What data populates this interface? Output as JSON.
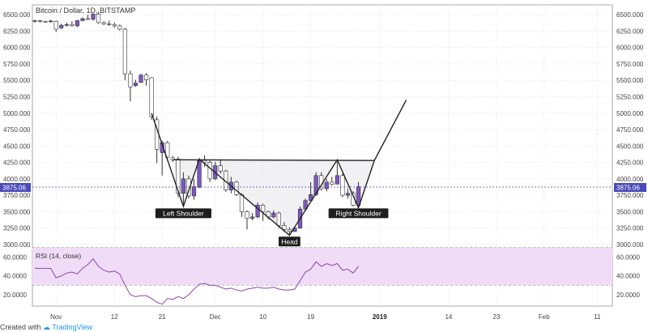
{
  "title": "Bitcoin / Dollar, 1D, BITSTAMP",
  "price_badge": "3875.06",
  "footer": {
    "prefix": "Created with",
    "brand": "TradingView"
  },
  "colors": {
    "up": "#7e57c2",
    "down": "#ffffff",
    "candle_border": "#333333",
    "pattern": "#222222",
    "pattern_fill": "#e8e8ec",
    "rsi_line": "#8e44ad",
    "rsi_band": "#f0dcf7",
    "badge": "#4a4ab8",
    "grid": "#d6d6d6"
  },
  "chart_data": {
    "type": "candlestick",
    "title": "Bitcoin / Dollar, 1D, BITSTAMP",
    "ylim": [
      2950,
      6650
    ],
    "ticks": [
      3000,
      3250,
      3500,
      3750,
      4000,
      4250,
      4500,
      4750,
      5000,
      5250,
      5500,
      5750,
      6000,
      6250,
      6500
    ],
    "x_ticks": [
      {
        "date": "2018-11-01",
        "label": "Nov"
      },
      {
        "date": "2018-11-12",
        "label": "12"
      },
      {
        "date": "2018-11-21",
        "label": "21"
      },
      {
        "date": "2018-12-01",
        "label": "Dec"
      },
      {
        "date": "2018-12-10",
        "label": "10"
      },
      {
        "date": "2018-12-19",
        "label": "19"
      },
      {
        "date": "2019-01-01",
        "label": "2019"
      },
      {
        "date": "2019-01-14",
        "label": "14"
      },
      {
        "date": "2019-01-23",
        "label": "23"
      },
      {
        "date": "2019-02-01",
        "label": "Feb"
      },
      {
        "date": "2019-02-11",
        "label": "11"
      }
    ],
    "candles": [
      {
        "date": "2018-10-28",
        "o": 6400,
        "h": 6420,
        "l": 6380,
        "c": 6410
      },
      {
        "date": "2018-10-29",
        "o": 6410,
        "h": 6420,
        "l": 6380,
        "c": 6400
      },
      {
        "date": "2018-10-30",
        "o": 6400,
        "h": 6410,
        "l": 6380,
        "c": 6395
      },
      {
        "date": "2018-10-31",
        "o": 6395,
        "h": 6420,
        "l": 6380,
        "c": 6405
      },
      {
        "date": "2018-11-01",
        "o": 6400,
        "h": 6410,
        "l": 6240,
        "c": 6280
      },
      {
        "date": "2018-11-02",
        "o": 6300,
        "h": 6360,
        "l": 6280,
        "c": 6340
      },
      {
        "date": "2018-11-03",
        "o": 6340,
        "h": 6380,
        "l": 6320,
        "c": 6350
      },
      {
        "date": "2018-11-04",
        "o": 6350,
        "h": 6400,
        "l": 6320,
        "c": 6330
      },
      {
        "date": "2018-11-05",
        "o": 6330,
        "h": 6420,
        "l": 6310,
        "c": 6410
      },
      {
        "date": "2018-11-06",
        "o": 6410,
        "h": 6460,
        "l": 6400,
        "c": 6440
      },
      {
        "date": "2018-11-07",
        "o": 6440,
        "h": 6500,
        "l": 6420,
        "c": 6430
      },
      {
        "date": "2018-11-08",
        "o": 6430,
        "h": 6520,
        "l": 6410,
        "c": 6510
      },
      {
        "date": "2018-11-09",
        "o": 6510,
        "h": 6540,
        "l": 6360,
        "c": 6380
      },
      {
        "date": "2018-11-10",
        "o": 6380,
        "h": 6400,
        "l": 6340,
        "c": 6360
      },
      {
        "date": "2018-11-11",
        "o": 6360,
        "h": 6410,
        "l": 6330,
        "c": 6350
      },
      {
        "date": "2018-11-12",
        "o": 6350,
        "h": 6380,
        "l": 6300,
        "c": 6330
      },
      {
        "date": "2018-11-13",
        "o": 6330,
        "h": 6350,
        "l": 6260,
        "c": 6280
      },
      {
        "date": "2018-11-14",
        "o": 6280,
        "h": 6300,
        "l": 5500,
        "c": 5600
      },
      {
        "date": "2018-11-15",
        "o": 5600,
        "h": 5650,
        "l": 5180,
        "c": 5400
      },
      {
        "date": "2018-11-16",
        "o": 5420,
        "h": 5510,
        "l": 5400,
        "c": 5460
      },
      {
        "date": "2018-11-17",
        "o": 5470,
        "h": 5600,
        "l": 5460,
        "c": 5580
      },
      {
        "date": "2018-11-18",
        "o": 5580,
        "h": 5610,
        "l": 5420,
        "c": 5510
      },
      {
        "date": "2018-11-19",
        "o": 5540,
        "h": 5550,
        "l": 4900,
        "c": 4950
      },
      {
        "date": "2018-11-20",
        "o": 4900,
        "h": 4950,
        "l": 4240,
        "c": 4450
      },
      {
        "date": "2018-11-21",
        "o": 4400,
        "h": 4580,
        "l": 4050,
        "c": 4550
      },
      {
        "date": "2018-11-22",
        "o": 4550,
        "h": 4580,
        "l": 4300,
        "c": 4330
      },
      {
        "date": "2018-11-23",
        "o": 4320,
        "h": 4350,
        "l": 4260,
        "c": 4290
      },
      {
        "date": "2018-11-24",
        "o": 4300,
        "h": 4340,
        "l": 3720,
        "c": 3780
      },
      {
        "date": "2018-11-25",
        "o": 3780,
        "h": 4100,
        "l": 3600,
        "c": 4000
      },
      {
        "date": "2018-11-26",
        "o": 4000,
        "h": 4050,
        "l": 3700,
        "c": 3740
      },
      {
        "date": "2018-11-27",
        "o": 3740,
        "h": 4000,
        "l": 3680,
        "c": 3880
      },
      {
        "date": "2018-11-28",
        "o": 3870,
        "h": 4320,
        "l": 3860,
        "c": 4280
      },
      {
        "date": "2018-11-29",
        "o": 4280,
        "h": 4360,
        "l": 4180,
        "c": 4250
      },
      {
        "date": "2018-11-30",
        "o": 4250,
        "h": 4280,
        "l": 3950,
        "c": 4000
      },
      {
        "date": "2018-12-01",
        "o": 4000,
        "h": 4260,
        "l": 3980,
        "c": 4200
      },
      {
        "date": "2018-12-02",
        "o": 4200,
        "h": 4300,
        "l": 4080,
        "c": 4120
      },
      {
        "date": "2018-12-03",
        "o": 4120,
        "h": 4140,
        "l": 3800,
        "c": 3830
      },
      {
        "date": "2018-12-04",
        "o": 3830,
        "h": 4030,
        "l": 3780,
        "c": 3950
      },
      {
        "date": "2018-12-05",
        "o": 3950,
        "h": 3970,
        "l": 3740,
        "c": 3760
      },
      {
        "date": "2018-12-06",
        "o": 3760,
        "h": 3780,
        "l": 3420,
        "c": 3500
      },
      {
        "date": "2018-12-07",
        "o": 3500,
        "h": 3520,
        "l": 3230,
        "c": 3400
      },
      {
        "date": "2018-12-08",
        "o": 3400,
        "h": 3480,
        "l": 3370,
        "c": 3420
      },
      {
        "date": "2018-12-09",
        "o": 3420,
        "h": 3640,
        "l": 3400,
        "c": 3600
      },
      {
        "date": "2018-12-10",
        "o": 3600,
        "h": 3620,
        "l": 3360,
        "c": 3500
      },
      {
        "date": "2018-12-11",
        "o": 3500,
        "h": 3520,
        "l": 3380,
        "c": 3420
      },
      {
        "date": "2018-12-12",
        "o": 3420,
        "h": 3520,
        "l": 3400,
        "c": 3480
      },
      {
        "date": "2018-12-13",
        "o": 3480,
        "h": 3500,
        "l": 3250,
        "c": 3290
      },
      {
        "date": "2018-12-14",
        "o": 3290,
        "h": 3340,
        "l": 3190,
        "c": 3230
      },
      {
        "date": "2018-12-15",
        "o": 3230,
        "h": 3260,
        "l": 3150,
        "c": 3200
      },
      {
        "date": "2018-12-16",
        "o": 3200,
        "h": 3280,
        "l": 3190,
        "c": 3250
      },
      {
        "date": "2018-12-17",
        "o": 3250,
        "h": 3580,
        "l": 3240,
        "c": 3540
      },
      {
        "date": "2018-12-18",
        "o": 3540,
        "h": 3700,
        "l": 3500,
        "c": 3670
      },
      {
        "date": "2018-12-19",
        "o": 3670,
        "h": 3950,
        "l": 3650,
        "c": 3760
      },
      {
        "date": "2018-12-20",
        "o": 3760,
        "h": 4100,
        "l": 3740,
        "c": 4050
      },
      {
        "date": "2018-12-21",
        "o": 4050,
        "h": 4100,
        "l": 3820,
        "c": 3850
      },
      {
        "date": "2018-12-22",
        "o": 3850,
        "h": 4000,
        "l": 3810,
        "c": 3950
      },
      {
        "date": "2018-12-23",
        "o": 3950,
        "h": 4030,
        "l": 3900,
        "c": 3920
      },
      {
        "date": "2018-12-24",
        "o": 3920,
        "h": 4260,
        "l": 3920,
        "c": 4050
      },
      {
        "date": "2018-12-25",
        "o": 4050,
        "h": 4080,
        "l": 3720,
        "c": 3750
      },
      {
        "date": "2018-12-26",
        "o": 3750,
        "h": 3850,
        "l": 3700,
        "c": 3780
      },
      {
        "date": "2018-12-27",
        "o": 3780,
        "h": 3810,
        "l": 3580,
        "c": 3600
      },
      {
        "date": "2018-12-28",
        "o": 3600,
        "h": 3950,
        "l": 3580,
        "c": 3880
      }
    ],
    "pattern": {
      "neckline": [
        {
          "date": "2018-11-23",
          "value": 4290
        },
        {
          "date": "2018-12-31",
          "value": 4280
        }
      ],
      "zigzag": [
        {
          "date": "2018-11-19",
          "value": 5000
        },
        {
          "date": "2018-11-25",
          "value": 3580
        },
        {
          "date": "2018-11-28",
          "value": 4300
        },
        {
          "date": "2018-12-15",
          "value": 3140
        },
        {
          "date": "2018-12-24",
          "value": 4290
        },
        {
          "date": "2018-12-28",
          "value": 3560
        },
        {
          "date": "2018-12-31",
          "value": 4280
        },
        {
          "date": "2019-01-06",
          "value": 5200
        }
      ],
      "labels": [
        {
          "text": "Left Shoulder",
          "date": "2018-11-25",
          "value": 3500
        },
        {
          "text": "Head",
          "date": "2018-12-15",
          "value": 3070
        },
        {
          "text": "Right Shoulder",
          "date": "2018-12-28",
          "value": 3500
        }
      ]
    },
    "rsi": {
      "label": "RSI (14, close)",
      "ylim": [
        8,
        68
      ],
      "ticks": [
        20,
        40,
        60
      ],
      "band": [
        30,
        70
      ],
      "values": [
        48,
        48,
        48,
        48,
        38,
        40,
        43,
        44,
        42,
        48,
        52,
        58,
        50,
        46,
        44,
        45,
        42,
        30,
        20,
        18,
        19,
        19,
        16,
        12,
        10,
        16,
        15,
        18,
        16,
        20,
        26,
        31,
        32,
        30,
        30,
        28,
        26,
        27,
        25,
        24,
        26,
        27,
        28,
        27,
        27,
        28,
        26,
        25,
        25,
        26,
        35,
        44,
        47,
        55,
        50,
        53,
        51,
        53,
        46,
        47,
        43,
        50
      ]
    },
    "axis_labels": {
      "y": [
        "3000.000",
        "3250.000",
        "3500.000",
        "3750.000",
        "4000.000",
        "4250.000",
        "4500.000",
        "4750.000",
        "5000.000",
        "5250.000",
        "5500.000",
        "5750.000",
        "6000.000",
        "6250.000",
        "6500.000"
      ],
      "rsi_y": [
        "20.0000",
        "40.0000",
        "60.0000"
      ]
    }
  }
}
